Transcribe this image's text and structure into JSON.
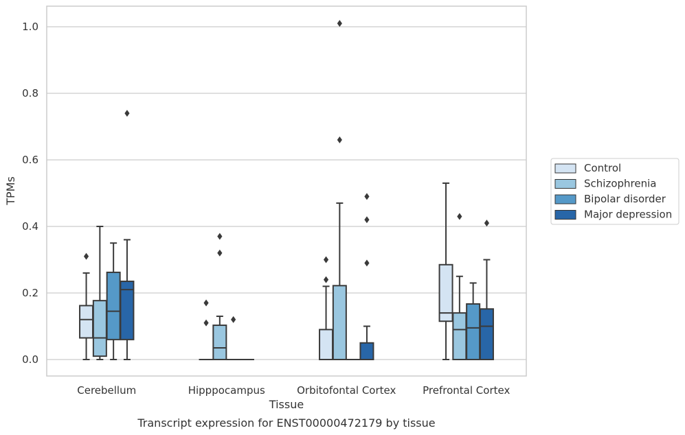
{
  "chart_data": {
    "type": "box",
    "title": "",
    "caption": "Transcript expression for ENST00000472179 by tissue",
    "xlabel": "Tissue",
    "ylabel": "TPMs",
    "ylim": [
      -0.05,
      1.06
    ],
    "yticks": [
      0.0,
      0.2,
      0.4,
      0.6,
      0.8,
      1.0
    ],
    "ytick_labels": [
      "0.0",
      "0.2",
      "0.4",
      "0.6",
      "0.8",
      "1.0"
    ],
    "grid": "horizontal",
    "legend_position": "right",
    "categories": [
      "Cerebellum",
      "Hipppocampus",
      "Orbitofontal Cortex",
      "Prefrontal Cortex"
    ],
    "series": [
      {
        "name": "Control",
        "color": "#d4e4f3",
        "boxes": [
          {
            "whislo": 0.0,
            "q1": 0.065,
            "med": 0.12,
            "q3": 0.162,
            "whishi": 0.26,
            "fliers": [
              0.31
            ]
          },
          {
            "whislo": 0.0,
            "q1": 0.0,
            "med": 0.0,
            "q3": 0.0,
            "whishi": 0.0,
            "fliers": [
              0.11,
              0.17
            ]
          },
          {
            "whislo": 0.0,
            "q1": 0.0,
            "med": 0.0,
            "q3": 0.09,
            "whishi": 0.22,
            "fliers": [
              0.24,
              0.3
            ]
          },
          {
            "whislo": 0.0,
            "q1": 0.115,
            "med": 0.14,
            "q3": 0.285,
            "whishi": 0.53,
            "fliers": []
          }
        ]
      },
      {
        "name": "Schizophrenia",
        "color": "#9ac7e0",
        "boxes": [
          {
            "whislo": 0.0,
            "q1": 0.01,
            "med": 0.065,
            "q3": 0.177,
            "whishi": 0.4,
            "fliers": []
          },
          {
            "whislo": 0.0,
            "q1": 0.0,
            "med": 0.035,
            "q3": 0.103,
            "whishi": 0.13,
            "fliers": [
              0.32,
              0.37
            ]
          },
          {
            "whislo": 0.0,
            "q1": 0.0,
            "med": 0.0,
            "q3": 0.222,
            "whishi": 0.47,
            "fliers": [
              0.66,
              1.01
            ]
          },
          {
            "whislo": 0.0,
            "q1": 0.0,
            "med": 0.09,
            "q3": 0.14,
            "whishi": 0.25,
            "fliers": [
              0.43
            ]
          }
        ]
      },
      {
        "name": "Bipolar disorder",
        "color": "#5599c8",
        "boxes": [
          {
            "whislo": 0.0,
            "q1": 0.06,
            "med": 0.145,
            "q3": 0.262,
            "whishi": 0.35,
            "fliers": []
          },
          {
            "whislo": 0.0,
            "q1": 0.0,
            "med": 0.0,
            "q3": 0.0,
            "whishi": 0.0,
            "fliers": [
              0.12
            ]
          },
          {
            "whislo": 0.0,
            "q1": 0.0,
            "med": 0.0,
            "q3": 0.0,
            "whishi": 0.0,
            "fliers": []
          },
          {
            "whislo": 0.0,
            "q1": 0.0,
            "med": 0.095,
            "q3": 0.167,
            "whishi": 0.23,
            "fliers": []
          }
        ]
      },
      {
        "name": "Major depression",
        "color": "#2866a8",
        "boxes": [
          {
            "whislo": 0.0,
            "q1": 0.06,
            "med": 0.21,
            "q3": 0.235,
            "whishi": 0.36,
            "fliers": [
              0.74
            ]
          },
          {
            "whislo": 0.0,
            "q1": 0.0,
            "med": 0.0,
            "q3": 0.0,
            "whishi": 0.0,
            "fliers": []
          },
          {
            "whislo": 0.0,
            "q1": 0.0,
            "med": 0.0,
            "q3": 0.05,
            "whishi": 0.1,
            "fliers": [
              0.29,
              0.42,
              0.49
            ]
          },
          {
            "whislo": 0.0,
            "q1": 0.0,
            "med": 0.1,
            "q3": 0.152,
            "whishi": 0.3,
            "fliers": [
              0.41
            ]
          }
        ]
      }
    ]
  }
}
